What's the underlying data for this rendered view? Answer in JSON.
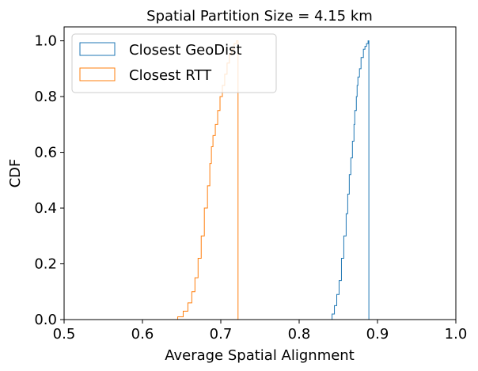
{
  "chart_data": {
    "type": "step-cdf",
    "title": "Spatial Partition Size = 4.15 km",
    "xlabel": "Average Spatial Alignment",
    "ylabel": "CDF",
    "xlim": [
      0.5,
      1.0
    ],
    "ylim": [
      0.0,
      1.05
    ],
    "xticks": [
      "0.5",
      "0.6",
      "0.7",
      "0.8",
      "0.9",
      "1.0"
    ],
    "yticks": [
      "0.0",
      "0.2",
      "0.4",
      "0.6",
      "0.8",
      "1.0"
    ],
    "xtick_values": [
      0.5,
      0.6,
      0.7,
      0.8,
      0.9,
      1.0
    ],
    "ytick_values": [
      0.0,
      0.2,
      0.4,
      0.6,
      0.8,
      1.0
    ],
    "grid": false,
    "legend_position": "top-left",
    "series": [
      {
        "name": "Closest GeoDist",
        "color": "#1f77b4",
        "x": [
          0.84,
          0.842,
          0.845,
          0.848,
          0.851,
          0.854,
          0.857,
          0.86,
          0.862,
          0.864,
          0.866,
          0.868,
          0.87,
          0.871,
          0.873,
          0.874,
          0.875,
          0.877,
          0.879,
          0.882,
          0.884,
          0.886,
          0.888,
          0.889
        ],
        "y": [
          0.0,
          0.02,
          0.05,
          0.09,
          0.14,
          0.22,
          0.3,
          0.38,
          0.45,
          0.52,
          0.58,
          0.64,
          0.7,
          0.75,
          0.8,
          0.84,
          0.87,
          0.9,
          0.94,
          0.97,
          0.98,
          0.99,
          1.0,
          1.0
        ]
      },
      {
        "name": "Closest RTT",
        "color": "#ff7f0e",
        "x": [
          0.637,
          0.645,
          0.652,
          0.658,
          0.663,
          0.667,
          0.671,
          0.675,
          0.679,
          0.683,
          0.686,
          0.688,
          0.69,
          0.693,
          0.696,
          0.699,
          0.702,
          0.705,
          0.708,
          0.711,
          0.714,
          0.717,
          0.72,
          0.722
        ],
        "y": [
          0.0,
          0.01,
          0.03,
          0.06,
          0.1,
          0.15,
          0.22,
          0.3,
          0.4,
          0.48,
          0.56,
          0.62,
          0.66,
          0.7,
          0.75,
          0.8,
          0.84,
          0.88,
          0.92,
          0.95,
          0.97,
          0.99,
          1.0,
          1.0
        ]
      }
    ]
  }
}
